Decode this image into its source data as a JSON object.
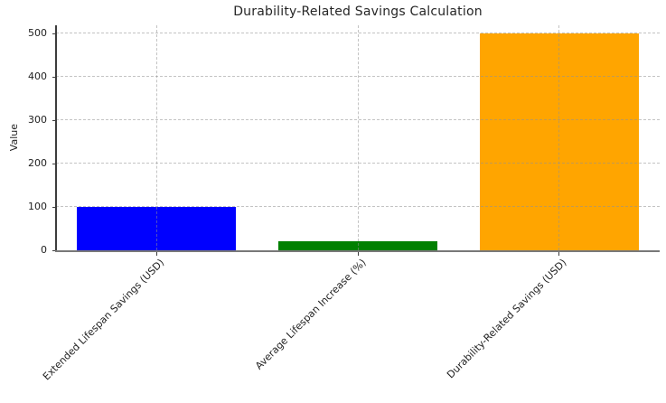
{
  "chart_data": {
    "type": "bar",
    "title": "Durability-Related Savings Calculation",
    "ylabel": "Value",
    "xlabel": "",
    "categories": [
      "Extended Lifespan Savings (USD)",
      "Average Lifespan Increase (%)",
      "Durability-Related Savings (USD)"
    ],
    "values": [
      100,
      20,
      500
    ],
    "bar_colors": [
      "#0000ff",
      "#008000",
      "#ffa500"
    ],
    "ylim": [
      0,
      500
    ],
    "yticks": [
      0,
      100,
      200,
      300,
      400,
      500
    ],
    "xtick_rotation_deg": 45,
    "grid": {
      "linestyle": "dashed",
      "axes": "both",
      "color": "#d9d9d9"
    },
    "legend": "none"
  }
}
